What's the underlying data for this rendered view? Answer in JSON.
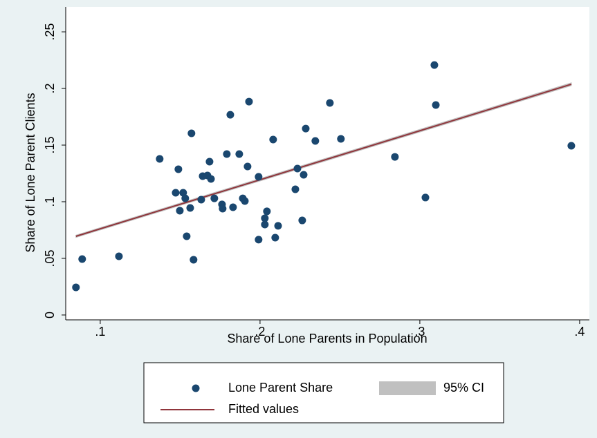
{
  "chart_data": {
    "type": "scatter",
    "x_label": "Share of Lone Parents in Population",
    "y_label": "Share of Lone Parent Clients",
    "xlim": [
      0.0784,
      0.4061
    ],
    "ylim": [
      -0.0043,
      0.272
    ],
    "xticks": [
      {
        "value": 0.1,
        "label": ".1"
      },
      {
        "value": 0.2,
        "label": ".2"
      },
      {
        "value": 0.3,
        "label": ".3"
      },
      {
        "value": 0.4,
        "label": ".4"
      }
    ],
    "yticks": [
      0,
      {
        "value": 0.05,
        "label": ".05"
      },
      {
        "value": 0.1,
        "label": ".1"
      },
      {
        "value": 0.15,
        "label": ".15"
      },
      {
        "value": 0.2,
        "label": ".2"
      },
      {
        "value": 0.25,
        "label": ".25"
      }
    ],
    "legend": "bottom",
    "series": [
      {
        "name": "Lone Parent Share",
        "type": "scatter",
        "color": "#1a476f",
        "x": [
          0.0848,
          0.0887,
          0.1117,
          0.1372,
          0.1472,
          0.1489,
          0.1498,
          0.1519,
          0.1532,
          0.1541,
          0.1563,
          0.1571,
          0.1584,
          0.1632,
          0.1641,
          0.1671,
          0.1684,
          0.1693,
          0.1714,
          0.1762,
          0.1766,
          0.1792,
          0.1814,
          0.1831,
          0.187,
          0.1892,
          0.1905,
          0.1922,
          0.1931,
          0.1991,
          0.1991,
          0.203,
          0.203,
          0.2043,
          0.2082,
          0.2095,
          0.2113,
          0.2221,
          0.2234,
          0.2264,
          0.2273,
          0.2286,
          0.2346,
          0.2437,
          0.2506,
          0.2844,
          0.3035,
          0.3091,
          0.31,
          0.3948
        ],
        "values": [
          0.0244,
          0.0494,
          0.0518,
          0.1378,
          0.1079,
          0.1287,
          0.0921,
          0.1079,
          0.103,
          0.0695,
          0.0945,
          0.1604,
          0.0488,
          0.1018,
          0.1226,
          0.1232,
          0.1354,
          0.1201,
          0.103,
          0.0976,
          0.0939,
          0.1421,
          0.1768,
          0.0951,
          0.1421,
          0.103,
          0.1006,
          0.1311,
          0.1884,
          0.122,
          0.0665,
          0.0854,
          0.0799,
          0.0915,
          0.1549,
          0.0683,
          0.0787,
          0.111,
          0.1293,
          0.0835,
          0.1238,
          0.1646,
          0.1537,
          0.1872,
          0.1555,
          0.1396,
          0.1037,
          0.2207,
          0.1854,
          0.1494
        ]
      },
      {
        "name": "95% CI",
        "type": "area",
        "color": "#c0c0c0",
        "x": [
          0.0848,
          0.3948
        ],
        "lower": [
          0.0685,
          0.2025
        ],
        "upper": [
          0.0705,
          0.205
        ]
      },
      {
        "name": "Fitted values",
        "type": "line",
        "color": "#90353b",
        "x": [
          0.0848,
          0.3948
        ],
        "values": [
          0.0695,
          0.2037
        ]
      }
    ]
  }
}
